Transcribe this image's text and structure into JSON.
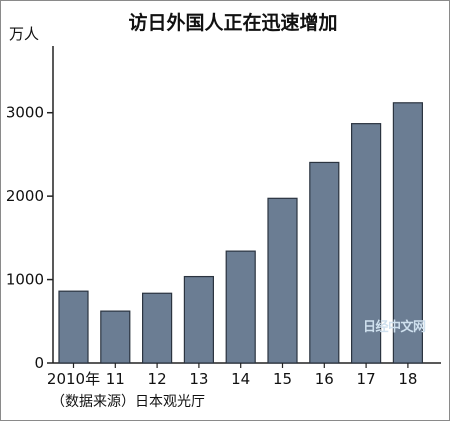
{
  "chart_data": {
    "type": "bar",
    "title": "访日外国人正在迅速增加",
    "unit_label": "万人",
    "categories": [
      "2010年",
      "11",
      "12",
      "13",
      "14",
      "15",
      "16",
      "17",
      "18"
    ],
    "values": [
      861,
      622,
      836,
      1036,
      1341,
      1974,
      2404,
      2869,
      3119
    ],
    "ylim": [
      0,
      3500
    ],
    "yticks": [
      0,
      1000,
      2000,
      3000
    ],
    "grid": false,
    "bar_color": "#6b7d93",
    "source": "（数据来源）日本观光厅",
    "watermark": "日经中文网"
  }
}
